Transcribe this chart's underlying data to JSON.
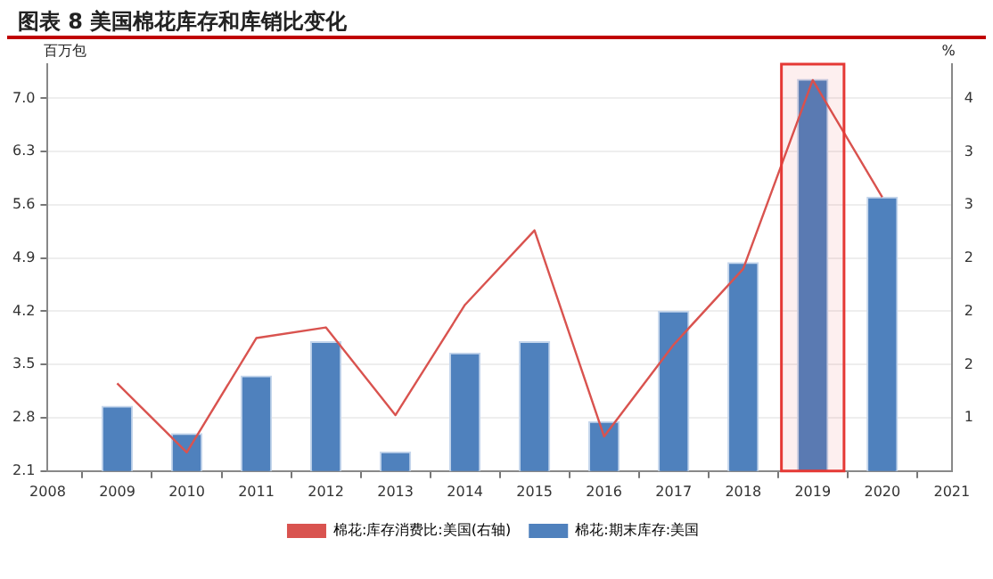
{
  "chart_data": {
    "type": "bar",
    "title": "图表 8 美国棉花库存和库销比变化",
    "ylabel": "百万包",
    "y2label": "%",
    "x": [
      2009,
      2010,
      2011,
      2012,
      2013,
      2014,
      2015,
      2016,
      2017,
      2018,
      2019,
      2020
    ],
    "series": [
      {
        "name": "棉花:库存消费比:美国(右轴)",
        "type": "line",
        "axis": "y2",
        "color": "#d9534f",
        "values": [
          1.46,
          0.94,
          1.8,
          1.88,
          1.22,
          2.05,
          2.61,
          1.06,
          1.75,
          2.32,
          3.74,
          2.86
        ]
      },
      {
        "name": "棉花:期末库存:美国",
        "color": "#4f81bd",
        "values": [
          2.95,
          2.59,
          3.35,
          3.8,
          2.35,
          3.65,
          3.8,
          2.75,
          4.2,
          4.84,
          7.25,
          5.7
        ]
      }
    ],
    "xlim": [
      2008,
      2021
    ],
    "xticks": [
      2008,
      2009,
      2010,
      2011,
      2012,
      2013,
      2014,
      2015,
      2016,
      2017,
      2018,
      2019,
      2020,
      2021
    ],
    "ylim": [
      2.1,
      7.45
    ],
    "yticks": [
      2.1,
      2.8,
      3.5,
      4.2,
      4.9,
      5.6,
      6.3,
      {
        "value": 7,
        "label": "7.0"
      }
    ],
    "y2lim": [
      0.8,
      3.86
    ],
    "y2ticks": [
      {
        "value": 1.2,
        "label": "1"
      },
      {
        "value": 1.6,
        "label": "2"
      },
      {
        "value": 2.0,
        "label": "2"
      },
      {
        "value": 2.4,
        "label": "2"
      },
      {
        "value": 2.8,
        "label": "3"
      },
      {
        "value": 3.2,
        "label": "3"
      },
      {
        "value": 3.6,
        "label": "4"
      }
    ],
    "bands": [
      {
        "axis": "x",
        "from": 2018.55,
        "to": 2019.45,
        "color": "#e53935"
      }
    ],
    "grid": "y",
    "legend": "bottom",
    "marker": "none",
    "line_style": "solid"
  }
}
